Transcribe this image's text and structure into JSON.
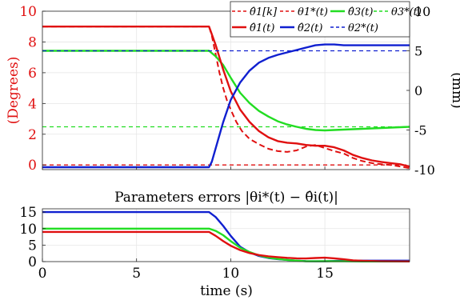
{
  "chart_data": [
    {
      "type": "line",
      "title": "",
      "xlabel": "",
      "ylabel_left": "(Degrees)",
      "ylabel_right": "(mm)",
      "xlim": [
        0,
        19.5
      ],
      "ylim_left": [
        -0.3,
        10
      ],
      "ylim_right": [
        -10,
        10
      ],
      "yticks_left": [
        "0",
        "2",
        "4",
        "6",
        "8",
        "10"
      ],
      "yticks_right": [
        "-10",
        "-5",
        "0",
        "5",
        "10"
      ],
      "grid": true,
      "legend_position": "top-right",
      "colors": {
        "red": "#e01010",
        "green": "#22dd22",
        "blue": "#1020d0"
      },
      "series": [
        {
          "name": "θ̂1[k]",
          "axis": "left",
          "color": "#e01010",
          "style": "dashed",
          "x": [
            0,
            8.85,
            9.0,
            9.2,
            9.4,
            9.6,
            9.8,
            10.0,
            10.3,
            10.6,
            11.0,
            11.5,
            12.0,
            12.5,
            13.0,
            13.5,
            14.0,
            14.5,
            15.0,
            15.5,
            16.0,
            16.5,
            17.0,
            17.5,
            18.0,
            18.5,
            19.0,
            19.5
          ],
          "y": [
            9.0,
            9.0,
            8.4,
            7.2,
            6.0,
            5.0,
            4.2,
            3.6,
            2.8,
            2.2,
            1.7,
            1.35,
            1.05,
            0.9,
            0.85,
            0.95,
            1.2,
            1.3,
            1.1,
            0.9,
            0.75,
            0.45,
            0.25,
            0.12,
            0.05,
            0.0,
            -0.1,
            -0.2
          ]
        },
        {
          "name": "θ1*(t)",
          "axis": "left",
          "color": "#e01010",
          "style": "dashed",
          "x": [
            0,
            19.5
          ],
          "y": [
            0,
            0
          ]
        },
        {
          "name": "θ̂3(t)",
          "axis": "right",
          "color": "#22dd22",
          "style": "solid",
          "x": [
            0,
            8.85,
            9.2,
            9.6,
            10.0,
            10.5,
            11.0,
            11.5,
            12.0,
            12.5,
            13.0,
            13.5,
            14.0,
            14.5,
            15.0,
            15.5,
            16.0,
            16.5,
            17.0,
            17.5,
            18.0,
            18.5,
            19.0,
            19.5
          ],
          "y": [
            5.0,
            5.0,
            4.3,
            3.2,
            1.6,
            -0.3,
            -1.6,
            -2.6,
            -3.3,
            -3.9,
            -4.3,
            -4.6,
            -4.85,
            -5.0,
            -5.05,
            -5.0,
            -4.95,
            -4.9,
            -4.85,
            -4.8,
            -4.75,
            -4.7,
            -4.65,
            -4.6
          ]
        },
        {
          "name": "θ3*(t)",
          "axis": "right",
          "color": "#22dd22",
          "style": "dashed",
          "x": [
            0,
            19.5
          ],
          "y": [
            -4.6,
            -4.6
          ]
        },
        {
          "name": "θ̂1(t)",
          "axis": "left",
          "color": "#e01010",
          "style": "solid",
          "x": [
            0,
            8.85,
            9.2,
            9.6,
            10.0,
            10.5,
            11.0,
            11.5,
            12.0,
            12.5,
            13.0,
            13.5,
            14.0,
            14.5,
            15.0,
            15.5,
            16.0,
            16.5,
            17.0,
            17.5,
            18.0,
            18.5,
            19.0,
            19.5
          ],
          "y": [
            9.0,
            9.0,
            7.8,
            6.2,
            4.8,
            3.6,
            2.8,
            2.2,
            1.8,
            1.55,
            1.45,
            1.4,
            1.3,
            1.25,
            1.25,
            1.15,
            0.95,
            0.65,
            0.45,
            0.3,
            0.2,
            0.12,
            0.05,
            -0.1
          ]
        },
        {
          "name": "θ̂2(t)",
          "axis": "right",
          "color": "#1020d0",
          "style": "solid",
          "x": [
            0,
            8.85,
            9.0,
            9.3,
            9.6,
            10.0,
            10.5,
            11.0,
            11.5,
            12.0,
            12.5,
            13.0,
            13.5,
            14.0,
            14.5,
            15.0,
            15.5,
            16.0,
            16.5,
            17.0,
            18.0,
            19.5
          ],
          "y": [
            -9.7,
            -9.7,
            -9.0,
            -6.5,
            -4.0,
            -1.2,
            1.0,
            2.5,
            3.5,
            4.1,
            4.5,
            4.8,
            5.1,
            5.4,
            5.7,
            5.8,
            5.8,
            5.7,
            5.7,
            5.7,
            5.7,
            5.7
          ]
        },
        {
          "name": "θ2*(t)",
          "axis": "right",
          "color": "#1020d0",
          "style": "dashed",
          "x": [
            0,
            19.5
          ],
          "y": [
            5.0,
            5.0
          ]
        }
      ]
    },
    {
      "type": "line",
      "title": "Parameters errors |θi*(t) − θ̂i(t)|",
      "xlabel": "time (s)",
      "ylabel": "",
      "xlim": [
        0,
        19.5
      ],
      "ylim": [
        0,
        16
      ],
      "xticks": [
        "0",
        "5",
        "10",
        "15"
      ],
      "yticks": [
        "0",
        "5",
        "10",
        "15"
      ],
      "grid": true,
      "series": [
        {
          "color": "#1020d0",
          "x": [
            0,
            8.85,
            9.2,
            9.6,
            10.0,
            10.5,
            11.0,
            11.5,
            12.0,
            12.5,
            13.0,
            13.5,
            14.0,
            14.5,
            15.0,
            16.0,
            17.0,
            18.0,
            19.5
          ],
          "y": [
            15.0,
            15.0,
            13.5,
            10.8,
            7.8,
            4.5,
            2.8,
            1.7,
            1.1,
            0.75,
            0.5,
            0.3,
            0.15,
            0.1,
            0.1,
            0.3,
            0.3,
            0.3,
            0.3
          ]
        },
        {
          "color": "#22dd22",
          "x": [
            0,
            8.85,
            9.2,
            9.6,
            10.0,
            10.5,
            11.0,
            11.5,
            12.0,
            12.5,
            13.0,
            13.5,
            14.0,
            14.5,
            15.0,
            16.0,
            17.0,
            18.0,
            19.5
          ],
          "y": [
            10.0,
            10.0,
            9.3,
            8.0,
            6.2,
            4.2,
            2.9,
            1.9,
            1.2,
            0.8,
            0.5,
            0.3,
            0.1,
            0.1,
            0.15,
            0.1,
            0.05,
            0.05,
            0.05
          ]
        },
        {
          "color": "#e01010",
          "x": [
            0,
            8.85,
            9.2,
            9.6,
            10.0,
            10.5,
            11.0,
            11.5,
            12.0,
            12.5,
            13.0,
            13.5,
            14.0,
            14.5,
            15.0,
            15.5,
            16.0,
            16.5,
            17.0,
            18.0,
            19.5
          ],
          "y": [
            9.0,
            9.0,
            7.8,
            6.2,
            4.8,
            3.5,
            2.6,
            2.0,
            1.6,
            1.35,
            1.15,
            1.0,
            0.95,
            1.1,
            1.2,
            1.0,
            0.7,
            0.4,
            0.25,
            0.1,
            0.05
          ]
        }
      ]
    }
  ]
}
